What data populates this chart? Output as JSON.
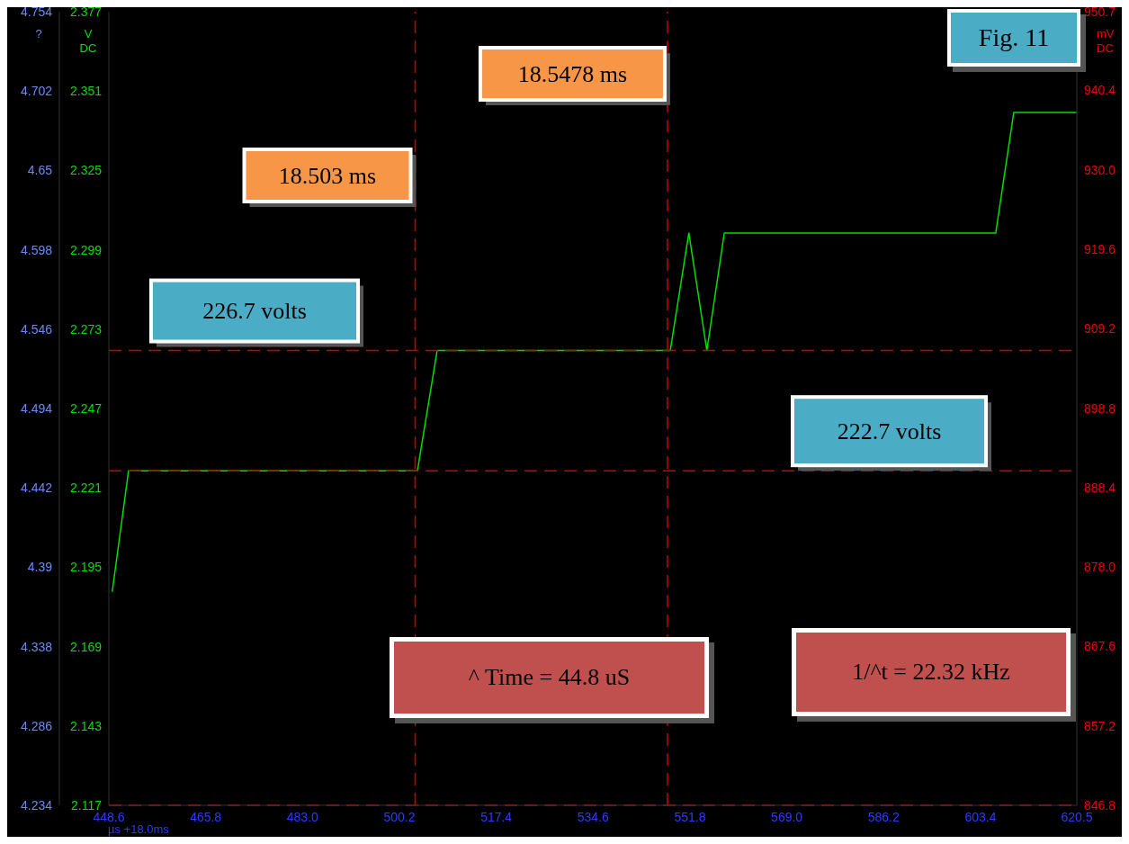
{
  "chart_data": {
    "type": "line",
    "title": "Fig. 11",
    "xlabel": "µs +18.0ms",
    "ylabel": "V DC",
    "y2label": "?",
    "y3label": "mV DC",
    "series": [
      {
        "color": "#00dd00",
        "x": [
          449.2,
          452.1,
          503.4,
          506.9,
          548.3,
          551.6,
          554.8,
          557.9,
          606.1,
          609.3,
          620.5
        ],
        "values": [
          2.187,
          2.2266,
          2.2266,
          2.266,
          2.266,
          2.3045,
          2.266,
          2.3045,
          2.3045,
          2.344,
          2.344
        ]
      }
    ],
    "xlim": [
      448.6,
      620.5
    ],
    "xticks": [
      448.6,
      465.8,
      {
        "value": 483,
        "label": "483.0"
      },
      500.2,
      517.4,
      534.6,
      551.8,
      {
        "value": 569,
        "label": "569.0"
      },
      586.2,
      603.4,
      620.5
    ],
    "ylim": [
      2.117,
      2.377
    ],
    "yticks": [
      2.117,
      2.143,
      2.169,
      2.195,
      2.221,
      2.247,
      2.273,
      2.299,
      2.325,
      2.351,
      2.377
    ],
    "y2lim": [
      4.234,
      4.754
    ],
    "y2ticks": [
      4.234,
      4.286,
      4.338,
      4.39,
      4.442,
      4.494,
      4.546,
      4.598,
      4.65,
      4.702,
      4.754
    ],
    "y3lim": [
      846.8,
      950.7
    ],
    "y3ticks": [
      846.8,
      857.2,
      867.6,
      {
        "value": 878,
        "label": "878.0"
      },
      888.4,
      898.8,
      909.2,
      919.6,
      {
        "value": 930,
        "label": "930.0"
      },
      940.4,
      950.7
    ],
    "ref_lines": [
      {
        "axis": "x",
        "value": 503.0,
        "label": "18.503 ms",
        "color": "#cc0000",
        "line_style": "dashed"
      },
      {
        "axis": "x",
        "value": 547.8,
        "label": "18.5478 ms",
        "color": "#cc0000",
        "line_style": "dashed"
      },
      {
        "axis": "y",
        "value": 2.266,
        "label": "226.7 volts",
        "color": "#cc0000",
        "line_style": "dashed"
      },
      {
        "axis": "y",
        "value": 2.2266,
        "label": "222.7 volts",
        "color": "#cc0000",
        "line_style": "dashed"
      },
      {
        "axis": "y",
        "value": 2.117,
        "color": "#cc0000",
        "line_style": "dashed"
      }
    ],
    "annotations": [
      "^ Time = 44.8 uS",
      "1/^t = 22.32 kHz"
    ],
    "marker": "none",
    "line_style": "solid",
    "legend": false
  }
}
